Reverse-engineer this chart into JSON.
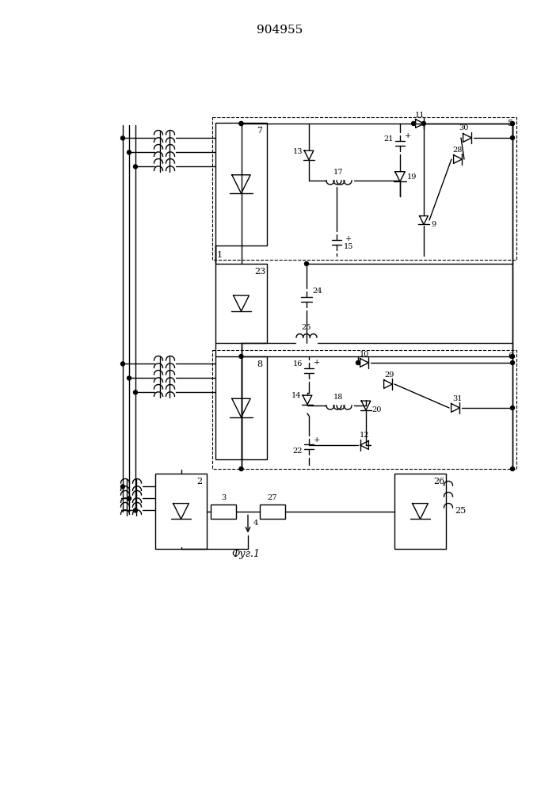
{
  "title": "904955",
  "bg_color": "#ffffff",
  "line_color": "#000000",
  "title_fontsize": 11,
  "caption": "Фуг.1",
  "caption_fontsize": 9,
  "figw": 7.07,
  "figh": 10.0,
  "dpi": 100
}
